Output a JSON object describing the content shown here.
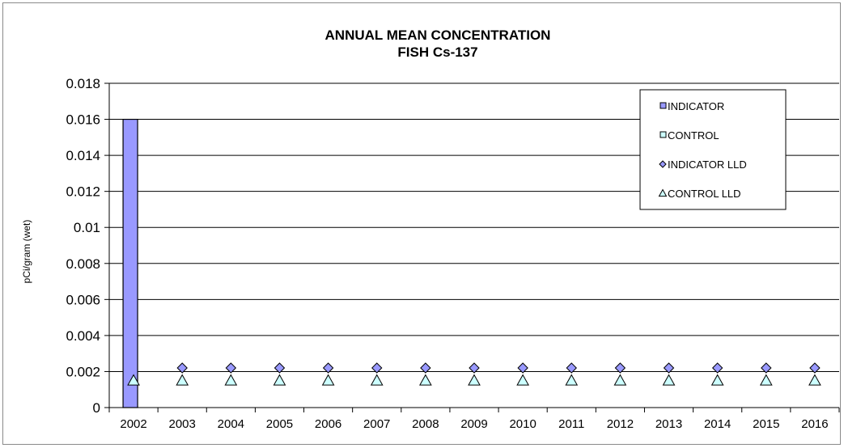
{
  "chart_data": {
    "type": "bar",
    "title": "ANNUAL  MEAN CONCENTRATION",
    "subtitle": "FISH Cs-137",
    "ylabel": "pCi/gram (wet)",
    "xlabel": "",
    "ylim": [
      0,
      0.018
    ],
    "yticks": [
      "0",
      "0.002",
      "0.004",
      "0.006",
      "0.008",
      "0.01",
      "0.012",
      "0.014",
      "0.016",
      "0.018"
    ],
    "categories": [
      "2002",
      "2003",
      "2004",
      "2005",
      "2006",
      "2007",
      "2008",
      "2009",
      "2010",
      "2011",
      "2012",
      "2013",
      "2014",
      "2015",
      "2016"
    ],
    "grid": true,
    "legend_position": "top-right",
    "series": [
      {
        "name": "INDICATOR",
        "type": "bar",
        "color": "#9999ff",
        "values": [
          0.016,
          null,
          null,
          null,
          null,
          null,
          null,
          null,
          null,
          null,
          null,
          null,
          null,
          null,
          null
        ]
      },
      {
        "name": "CONTROL",
        "type": "bar",
        "color": "#ccffff",
        "values": [
          null,
          null,
          null,
          null,
          null,
          null,
          null,
          null,
          null,
          null,
          null,
          null,
          null,
          null,
          null
        ]
      },
      {
        "name": "INDICATOR LLD",
        "type": "scatter",
        "marker": "diamond",
        "color": "#9999ff",
        "values": [
          null,
          0.0022,
          0.0022,
          0.0022,
          0.0022,
          0.0022,
          0.0022,
          0.0022,
          0.0022,
          0.0022,
          0.0022,
          0.0022,
          0.0022,
          0.0022,
          0.0022
        ]
      },
      {
        "name": "CONTROL LLD",
        "type": "scatter",
        "marker": "triangle",
        "color": "#ccffff",
        "values": [
          0.0015,
          0.0015,
          0.0015,
          0.0015,
          0.0015,
          0.0015,
          0.0015,
          0.0015,
          0.0015,
          0.0015,
          0.0015,
          0.0015,
          0.0015,
          0.0015,
          0.0015
        ]
      }
    ]
  }
}
